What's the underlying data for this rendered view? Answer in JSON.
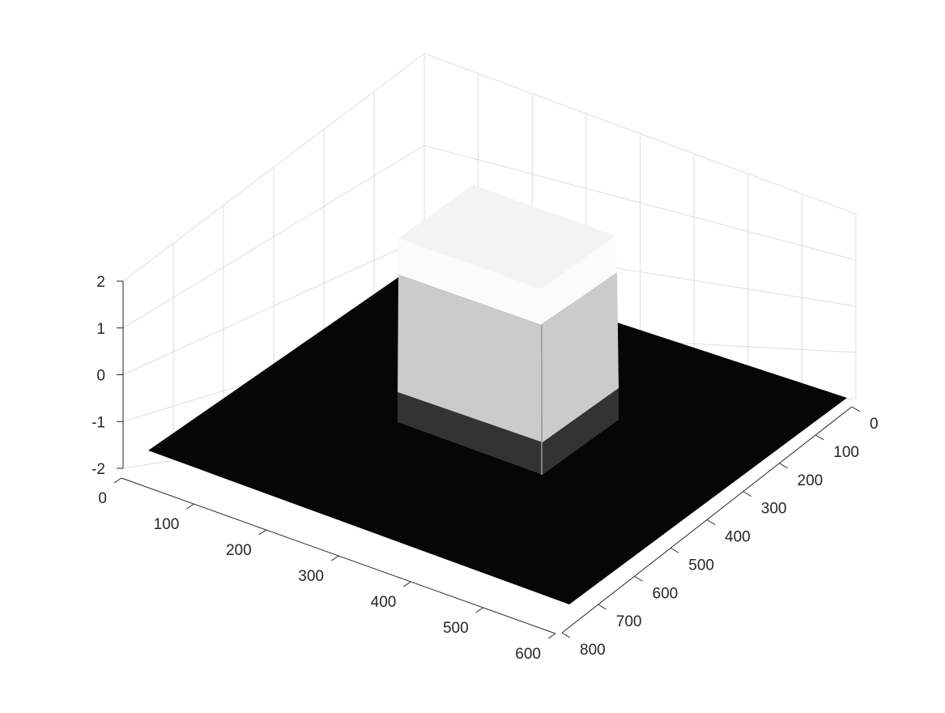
{
  "chart_data": {
    "type": "surface",
    "title": "",
    "xlabel": "",
    "ylabel": "",
    "zlabel": "",
    "xlim": [
      0,
      600
    ],
    "ylim": [
      0,
      800
    ],
    "zlim": [
      -2,
      2
    ],
    "x_ticks": [
      "0",
      "100",
      "200",
      "300",
      "400",
      "500",
      "600"
    ],
    "y_ticks": [
      "0",
      "100",
      "200",
      "300",
      "400",
      "500",
      "600",
      "700",
      "800"
    ],
    "z_ticks": [
      "-2",
      "-1",
      "0",
      "1",
      "2"
    ],
    "grid": true,
    "colormap": "gray",
    "colors": {
      "floor": "#060606",
      "top_face": "#f3f3f3",
      "top_band": "#fbfbfb",
      "middle_band": "#cbcbcb",
      "bottom_band": "#333333",
      "grid": "#dedede",
      "axis": "#262626"
    },
    "surface": {
      "base_level": -2,
      "block": {
        "x_range": [
          100,
          300
        ],
        "y_range": [
          100,
          300
        ],
        "top_level": 2
      }
    }
  }
}
